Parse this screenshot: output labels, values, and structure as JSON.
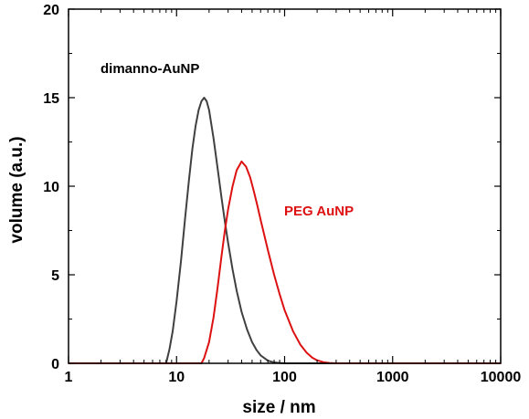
{
  "chart_data": {
    "type": "line",
    "xscale": "log",
    "xlabel": "size / nm",
    "ylabel": "volume (a.u.)",
    "xlim": [
      1,
      10000
    ],
    "ylim": [
      0,
      20
    ],
    "xticks": [
      1,
      10,
      100,
      1000,
      10000
    ],
    "yticks": [
      0,
      5,
      10,
      15,
      20
    ],
    "grid": false,
    "legend": "none",
    "colors": {
      "dimanno": "#404040",
      "peg": "#dd1111"
    },
    "series": [
      {
        "name": "dimanno-AuNP",
        "color": "#404040",
        "x": [
          1,
          5,
          8,
          8.6,
          9.2,
          10,
          11,
          12,
          13,
          14,
          15,
          16,
          17,
          18,
          19,
          20,
          22,
          24,
          26,
          28,
          30,
          33,
          36,
          40,
          45,
          50,
          55,
          60,
          70,
          80,
          90,
          100,
          1000,
          10000
        ],
        "y": [
          0,
          0,
          0,
          0.8,
          1.8,
          3.5,
          5.8,
          8.2,
          10.3,
          12.1,
          13.4,
          14.3,
          14.8,
          15.0,
          14.8,
          14.3,
          12.7,
          11.0,
          9.4,
          8.0,
          6.8,
          5.3,
          4.1,
          2.9,
          1.9,
          1.2,
          0.75,
          0.45,
          0.15,
          0.05,
          0.02,
          0,
          0,
          0
        ]
      },
      {
        "name": "PEG AuNP",
        "color": "#dd1111",
        "x": [
          1,
          10,
          17,
          18,
          20,
          22,
          24,
          26,
          28,
          30,
          33,
          36,
          40,
          44,
          48,
          52,
          56,
          60,
          70,
          80,
          90,
          100,
          120,
          140,
          160,
          180,
          200,
          230,
          260,
          300,
          1000,
          10000
        ],
        "y": [
          0,
          0,
          0,
          0.3,
          1.2,
          2.6,
          4.3,
          6.0,
          7.5,
          8.7,
          10.0,
          10.9,
          11.4,
          11.1,
          10.5,
          9.7,
          8.9,
          8.1,
          6.4,
          5.0,
          3.9,
          3.0,
          1.8,
          1.05,
          0.6,
          0.32,
          0.17,
          0.06,
          0.02,
          0,
          0,
          0
        ]
      }
    ]
  }
}
